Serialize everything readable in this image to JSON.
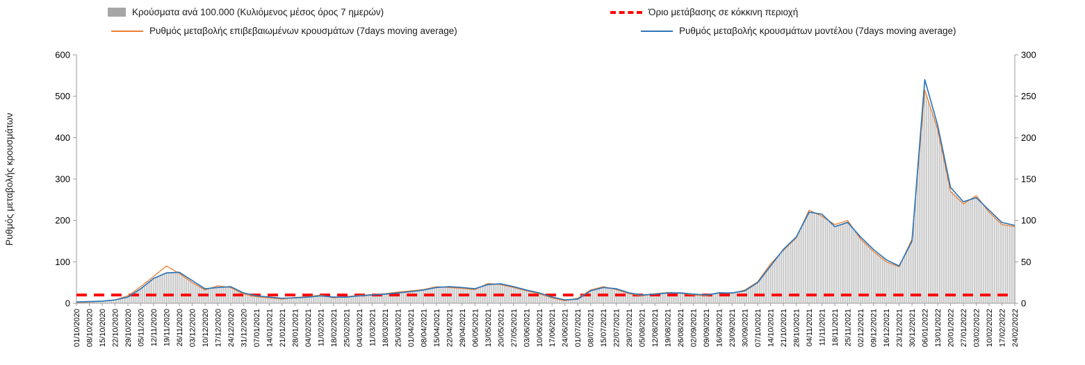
{
  "chart_data": {
    "type": "bar+line",
    "title": "",
    "legend_position": "top",
    "grid": false,
    "axes": {
      "left": {
        "label": "Ρυθμός μεταβολής κρουσμάτων",
        "min": 0,
        "max": 600,
        "ticks": [
          0,
          100,
          200,
          300,
          400,
          500,
          600
        ]
      },
      "right": {
        "label": "",
        "min": 0,
        "max": 300,
        "ticks": [
          0,
          50,
          100,
          150,
          200,
          250,
          300
        ]
      }
    },
    "threshold": {
      "name": "Όριο μετάβασης σε κόκκινη περιοχή",
      "value": 20,
      "axis": "left",
      "color": "#ff0000",
      "style": "dashed"
    },
    "categories": [
      "01/10/2020",
      "08/10/2020",
      "15/10/2020",
      "22/10/2020",
      "29/10/2020",
      "05/11/2020",
      "12/11/2020",
      "19/11/2020",
      "26/11/2020",
      "03/12/2020",
      "10/12/2020",
      "17/12/2020",
      "24/12/2020",
      "31/12/2020",
      "07/01/2021",
      "14/01/2021",
      "21/01/2021",
      "28/01/2021",
      "04/02/2021",
      "11/02/2021",
      "18/02/2021",
      "25/02/2021",
      "04/03/2021",
      "11/03/2021",
      "18/03/2021",
      "25/03/2021",
      "01/04/2021",
      "08/04/2021",
      "15/04/2021",
      "22/04/2021",
      "29/04/2021",
      "06/05/2021",
      "13/05/2021",
      "20/05/2021",
      "27/05/2021",
      "03/06/2021",
      "10/06/2021",
      "17/06/2021",
      "24/06/2021",
      "01/07/2021",
      "08/07/2021",
      "15/07/2021",
      "22/07/2021",
      "29/07/2021",
      "05/08/2021",
      "12/08/2021",
      "19/08/2021",
      "26/08/2021",
      "02/09/2021",
      "09/09/2021",
      "16/09/2021",
      "23/09/2021",
      "30/09/2021",
      "07/10/2021",
      "14/10/2021",
      "21/10/2021",
      "28/10/2021",
      "04/11/2021",
      "11/11/2021",
      "18/11/2021",
      "25/11/2021",
      "02/12/2021",
      "09/12/2021",
      "16/12/2021",
      "23/12/2021",
      "30/12/2021",
      "06/01/2022",
      "13/01/2022",
      "20/01/2022",
      "27/01/2022",
      "03/02/2022",
      "10/02/2022",
      "17/02/2022",
      "24/02/2022"
    ],
    "series": [
      {
        "name": "Κρούσματα ανά 100.000 (Κυλιόμενος μέσος όρος 7 ημερών)",
        "type": "bar",
        "axis": "right",
        "color": "#bcbcbc",
        "values": [
          1,
          2,
          2,
          4,
          8,
          18,
          30,
          38,
          37,
          26,
          17,
          20,
          19,
          12,
          9,
          7,
          6,
          7,
          8,
          9,
          7,
          8,
          9,
          10,
          11,
          13,
          14,
          16,
          19,
          20,
          19,
          17,
          23,
          23,
          19,
          15,
          12,
          7,
          3,
          5,
          15,
          19,
          17,
          12,
          9,
          11,
          13,
          12,
          10,
          9,
          13,
          12,
          16,
          26,
          46,
          64,
          79,
          111,
          106,
          93,
          99,
          78,
          63,
          51,
          44,
          76,
          258,
          212,
          137,
          121,
          128,
          111,
          96,
          93
        ]
      },
      {
        "name": "Ρυθμός μεταβολής επιβεβαιωμένων κρουσμάτων (7days moving average)",
        "type": "line",
        "axis": "left",
        "color": "#ed7d31",
        "values": [
          2,
          3,
          5,
          8,
          18,
          40,
          65,
          90,
          72,
          50,
          32,
          42,
          38,
          22,
          16,
          13,
          10,
          14,
          16,
          20,
          13,
          16,
          19,
          21,
          23,
          27,
          30,
          33,
          40,
          38,
          36,
          33,
          48,
          45,
          38,
          30,
          23,
          13,
          6,
          12,
          32,
          40,
          33,
          23,
          18,
          23,
          26,
          24,
          20,
          18,
          26,
          24,
          32,
          52,
          95,
          128,
          158,
          225,
          210,
          190,
          200,
          155,
          125,
          100,
          88,
          155,
          515,
          420,
          270,
          240,
          260,
          220,
          190,
          185
        ]
      },
      {
        "name": "Ρυθμός μεταβολής κρουσμάτων μοντέλου (7days moving average)",
        "type": "line",
        "axis": "left",
        "color": "#2e75b6",
        "values": [
          3,
          4,
          5,
          8,
          15,
          35,
          60,
          73,
          75,
          55,
          35,
          38,
          40,
          25,
          18,
          15,
          12,
          13,
          15,
          18,
          15,
          15,
          18,
          20,
          22,
          25,
          28,
          32,
          38,
          40,
          38,
          35,
          45,
          47,
          40,
          32,
          25,
          15,
          8,
          10,
          30,
          38,
          35,
          25,
          20,
          22,
          25,
          25,
          22,
          20,
          25,
          25,
          30,
          50,
          90,
          130,
          160,
          220,
          215,
          185,
          195,
          160,
          130,
          105,
          90,
          150,
          540,
          430,
          280,
          245,
          255,
          225,
          195,
          188
        ]
      }
    ]
  }
}
